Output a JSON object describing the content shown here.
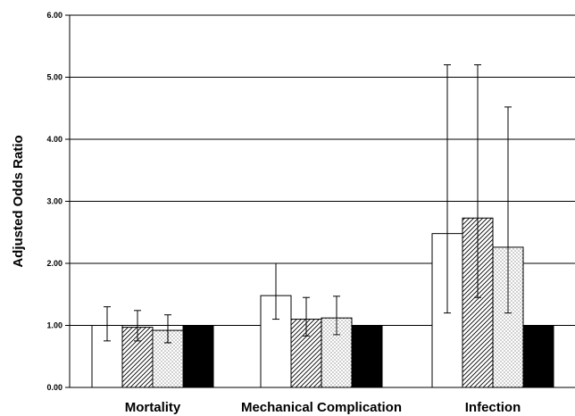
{
  "chart_data": {
    "type": "bar",
    "title": "",
    "xlabel": "",
    "ylabel": "Adjusted Odds Ratio",
    "ylim": [
      0,
      6
    ],
    "yticks": [
      0,
      1,
      2,
      3,
      4,
      5,
      6
    ],
    "ytick_labels": [
      "0.00",
      "1.00",
      "2.00",
      "3.00",
      "4.00",
      "5.00",
      "6.00"
    ],
    "grid": true,
    "legend": "none",
    "categories": [
      "Mortality",
      "Mechanical Complication",
      "Infection"
    ],
    "series": [
      {
        "fill": "white",
        "values": [
          1.0,
          1.48,
          2.48
        ],
        "err_low": [
          0.75,
          1.1,
          1.2
        ],
        "err_high": [
          1.3,
          2.0,
          5.2
        ]
      },
      {
        "fill": "diagonal-hatch",
        "values": [
          0.97,
          1.1,
          2.73
        ],
        "err_low": [
          0.75,
          0.83,
          1.45
        ],
        "err_high": [
          1.24,
          1.45,
          5.2
        ]
      },
      {
        "fill": "dotted",
        "values": [
          0.92,
          1.12,
          2.26
        ],
        "err_low": [
          0.72,
          0.85,
          1.2
        ],
        "err_high": [
          1.17,
          1.47,
          4.52
        ]
      },
      {
        "fill": "black",
        "values": [
          1.0,
          1.0,
          1.0
        ]
      }
    ]
  }
}
